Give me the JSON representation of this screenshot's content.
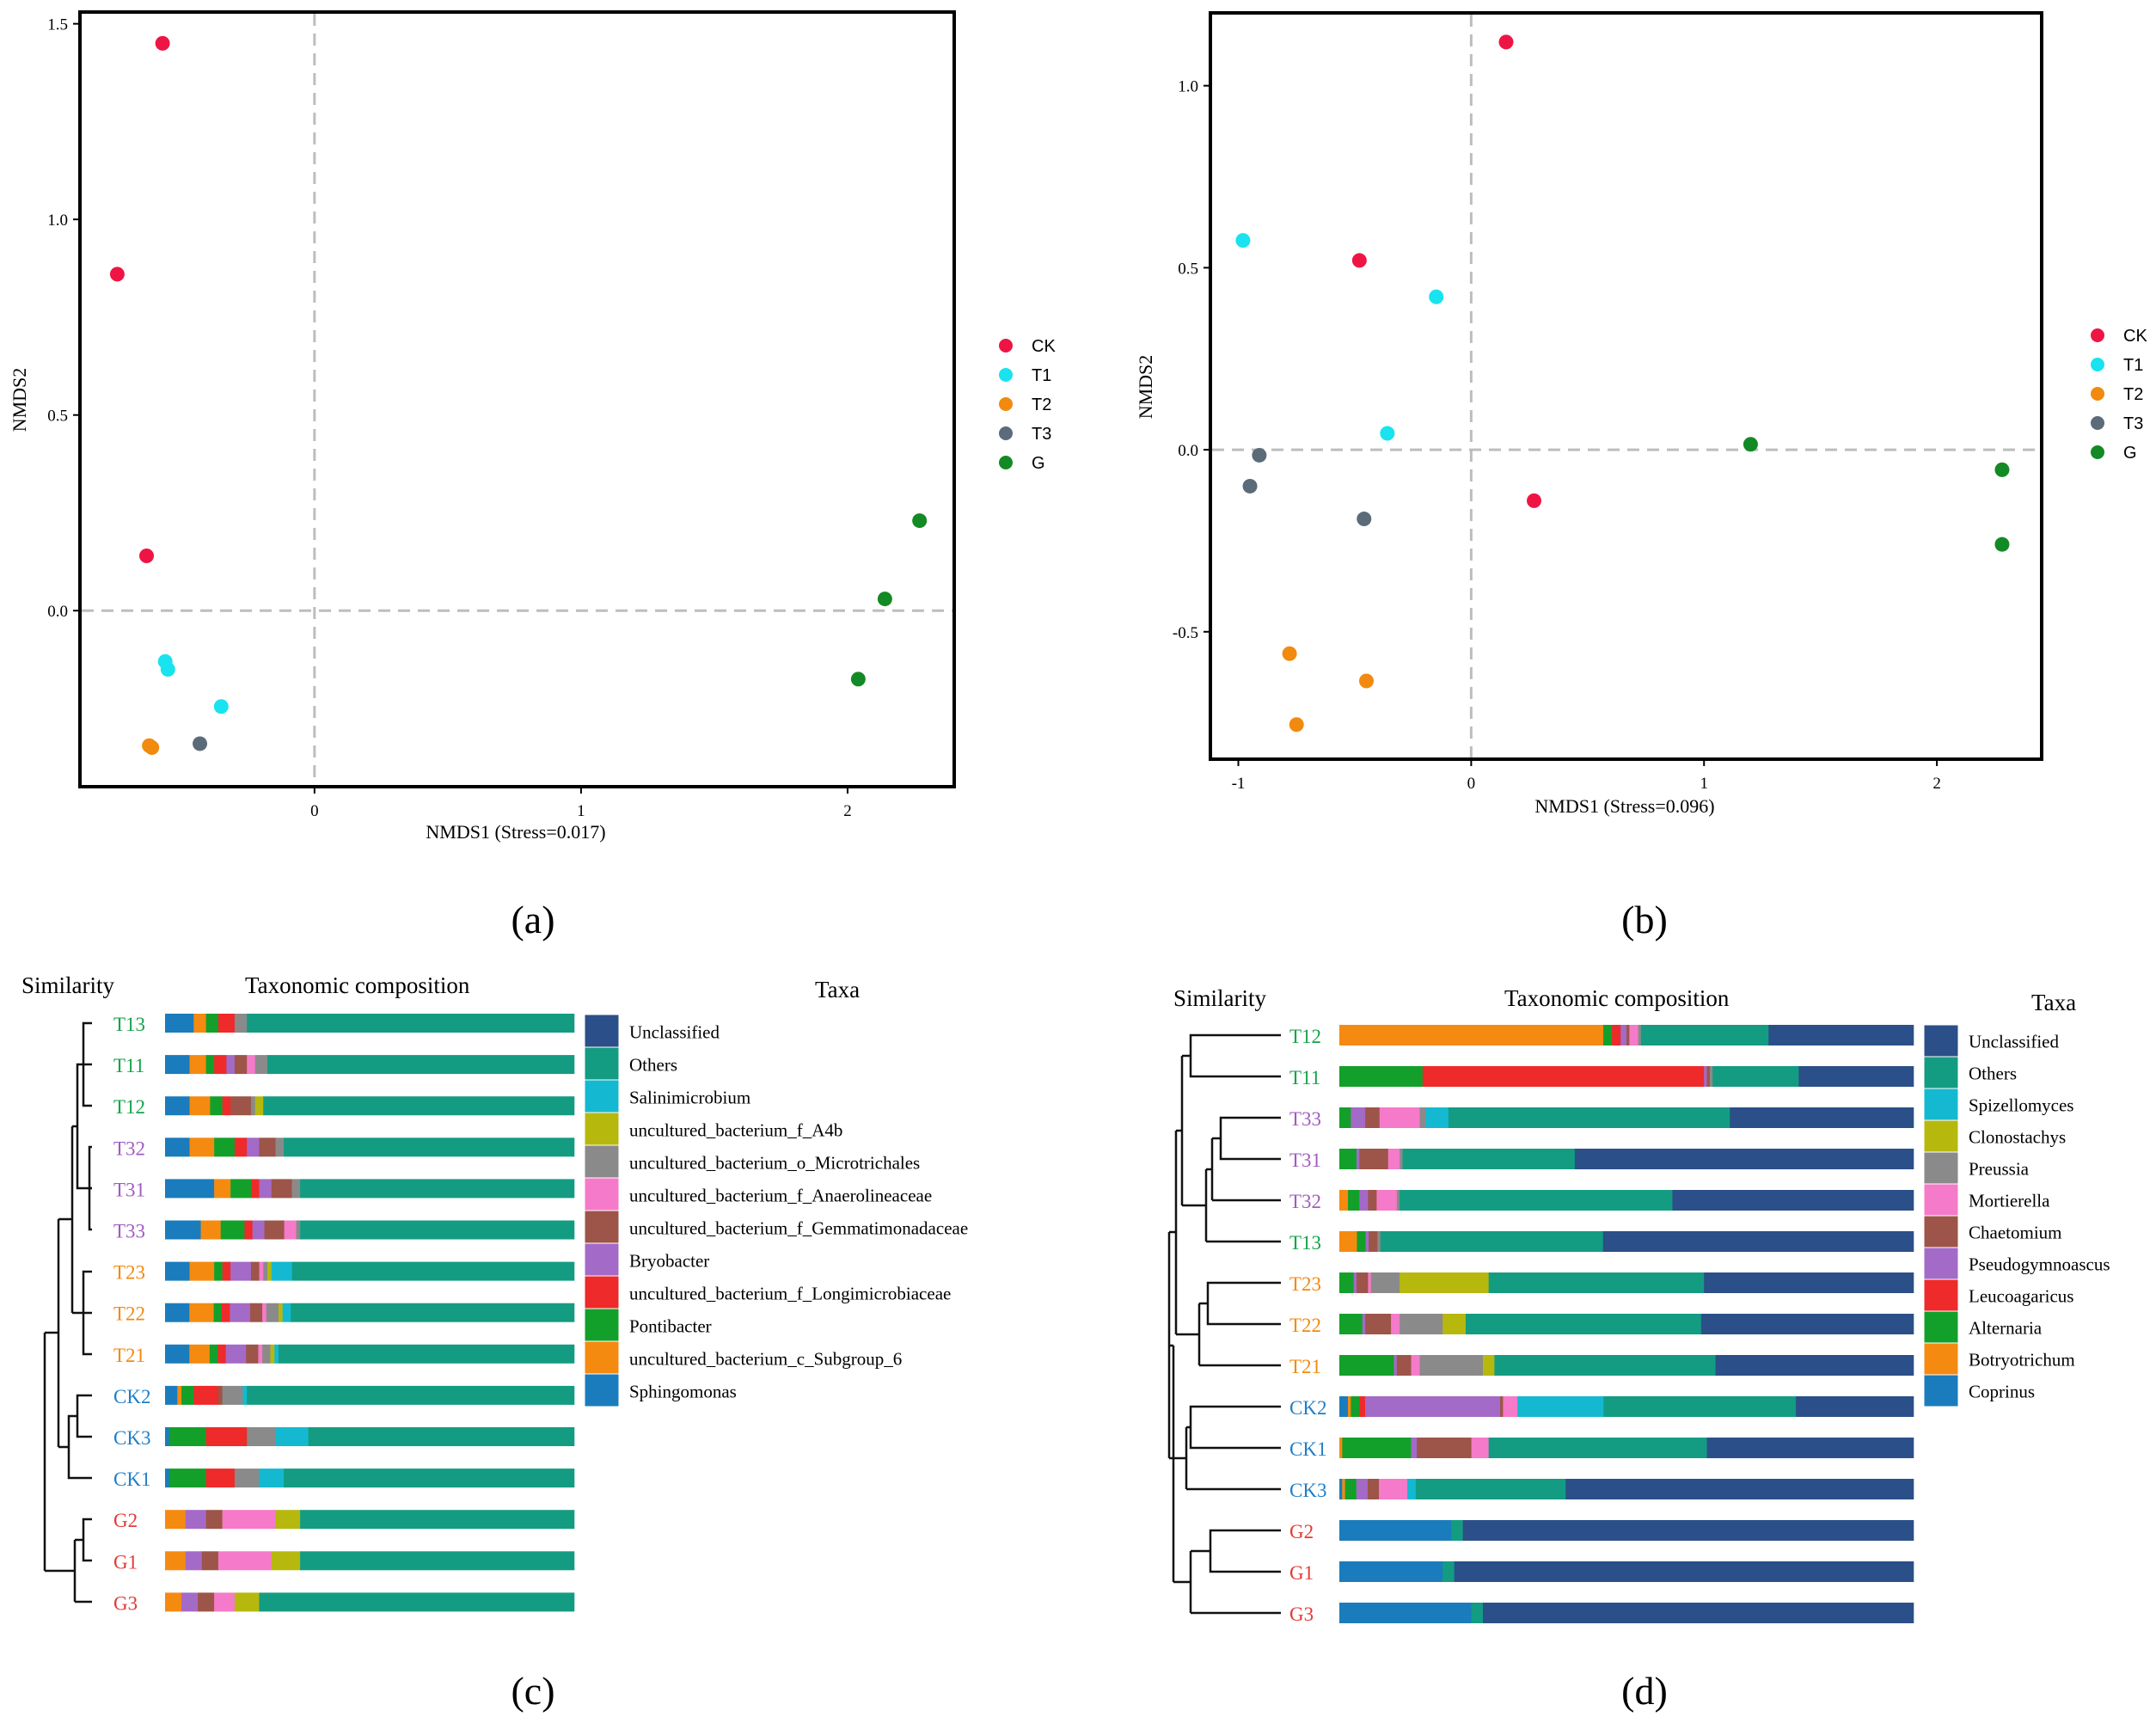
{
  "colors": {
    "CK": "#ee1545",
    "T1": "#18e3ee",
    "T2": "#f18a0f",
    "T3": "#5c6b79",
    "G": "#138a25",
    "lab_green": "#16a34a",
    "lab_purple": "#a05cc0",
    "lab_orange": "#f28a0f",
    "lab_blue": "#1f7ec8",
    "lab_red": "#e53935"
  },
  "chart_data": [
    {
      "id": "a",
      "type": "scatter",
      "panel_label": "(a)",
      "xlabel": "NMDS1 (Stress=0.017)",
      "ylabel": "NMDS2",
      "xlim": [
        -0.88,
        2.4
      ],
      "ylim": [
        -0.45,
        1.53
      ],
      "xticks": [
        "0",
        "1",
        "2"
      ],
      "xtick_values": [
        0,
        1,
        2
      ],
      "yticks": [
        "0.0",
        "0.5",
        "1.0",
        "1.5"
      ],
      "ytick_values": [
        0,
        0.5,
        1.0,
        1.5
      ],
      "legend": [
        "CK",
        "T1",
        "T2",
        "T3",
        "G"
      ],
      "series": [
        {
          "name": "CK",
          "points": [
            [
              -0.57,
              1.45
            ],
            [
              -0.74,
              0.86
            ],
            [
              -0.63,
              0.14
            ]
          ]
        },
        {
          "name": "T1",
          "points": [
            [
              -0.56,
              -0.13
            ],
            [
              -0.55,
              -0.15
            ],
            [
              -0.35,
              -0.245
            ]
          ]
        },
        {
          "name": "T2",
          "points": [
            [
              -0.62,
              -0.345
            ],
            [
              -0.61,
              -0.35
            ]
          ]
        },
        {
          "name": "T3",
          "points": [
            [
              -0.43,
              -0.34
            ]
          ]
        },
        {
          "name": "G",
          "points": [
            [
              2.27,
              0.23
            ],
            [
              2.14,
              0.03
            ],
            [
              2.04,
              -0.175
            ]
          ]
        }
      ]
    },
    {
      "id": "b",
      "type": "scatter",
      "panel_label": "(b)",
      "xlabel": "NMDS1 (Stress=0.096)",
      "ylabel": "NMDS2",
      "xlim": [
        -1.12,
        2.45
      ],
      "ylim": [
        -0.85,
        1.2
      ],
      "xticks": [
        "-1",
        "0",
        "1",
        "2"
      ],
      "xtick_values": [
        -1,
        0,
        1,
        2
      ],
      "yticks": [
        "-0.5",
        "0.0",
        "0.5",
        "1.0"
      ],
      "ytick_values": [
        -0.5,
        0,
        0.5,
        1.0
      ],
      "legend": [
        "CK",
        "T1",
        "T2",
        "T3",
        "G"
      ],
      "series": [
        {
          "name": "CK",
          "points": [
            [
              0.15,
              1.12
            ],
            [
              -0.48,
              0.52
            ],
            [
              0.27,
              -0.14
            ]
          ]
        },
        {
          "name": "T1",
          "points": [
            [
              -0.98,
              0.575
            ],
            [
              -0.15,
              0.42
            ],
            [
              -0.36,
              0.045
            ]
          ]
        },
        {
          "name": "T2",
          "points": [
            [
              -0.78,
              -0.56
            ],
            [
              -0.45,
              -0.635
            ],
            [
              -0.75,
              -0.755
            ]
          ]
        },
        {
          "name": "T3",
          "points": [
            [
              -0.91,
              -0.015
            ],
            [
              -0.95,
              -0.1
            ],
            [
              -0.46,
              -0.19
            ]
          ]
        },
        {
          "name": "G",
          "points": [
            [
              1.2,
              0.015
            ],
            [
              2.28,
              -0.055
            ],
            [
              2.28,
              -0.26
            ]
          ]
        }
      ]
    },
    {
      "id": "c",
      "type": "stacked_bar",
      "panel_label": "(c)",
      "title_left": "Similarity",
      "title_mid": "Taxonomic composition",
      "title_legend": "Taxa",
      "taxa": [
        "Unclassified",
        "Others",
        "Salinimicrobium",
        "uncultured_bacterium_f_A4b",
        "uncultured_bacterium_o_Microtrichales",
        "uncultured_bacterium_f_Anaerolineaceae",
        "uncultured_bacterium_f_Gemmatimonadaceae",
        "Bryobacter",
        "uncultured_bacterium_f_Longimicrobiaceae",
        "Pontibacter",
        "uncultured_bacterium_c_Subgroup_6",
        "Sphingomonas"
      ],
      "taxa_colors": [
        "#2b4f88",
        "#139c82",
        "#14b9d1",
        "#b7b80d",
        "#8a8a8a",
        "#f57ac9",
        "#9c5548",
        "#a46ac7",
        "#ee2a2a",
        "#13a02a",
        "#f58a11",
        "#1a7cbc"
      ],
      "samples": [
        {
          "name": "T13",
          "group": "T1",
          "values": [
            0,
            80.0,
            0,
            0,
            3,
            0,
            0,
            0,
            4,
            3,
            3,
            7
          ]
        },
        {
          "name": "T11",
          "group": "T1",
          "values": [
            0,
            75.0,
            0,
            0,
            3,
            2,
            3,
            2,
            3,
            2,
            4,
            6
          ]
        },
        {
          "name": "T12",
          "group": "T1",
          "values": [
            0,
            76.0,
            0,
            2,
            1,
            0,
            5,
            0,
            2,
            3,
            5,
            6
          ]
        },
        {
          "name": "T32",
          "group": "T3",
          "values": [
            0,
            71.0,
            0,
            0,
            2,
            0,
            4,
            3,
            3,
            5,
            6,
            6
          ]
        },
        {
          "name": "T31",
          "group": "T3",
          "values": [
            0,
            67.0,
            0,
            0,
            2,
            0,
            5,
            3,
            2,
            5,
            4,
            12
          ]
        },
        {
          "name": "T33",
          "group": "T3",
          "values": [
            0,
            69.0,
            0,
            0,
            1,
            3,
            5,
            3,
            2,
            6,
            5,
            9
          ]
        },
        {
          "name": "T23",
          "group": "T2",
          "values": [
            0,
            69.0,
            5,
            1,
            1,
            1,
            2,
            5,
            2,
            2,
            6,
            6
          ]
        },
        {
          "name": "T22",
          "group": "T2",
          "values": [
            0,
            70.0,
            2,
            1,
            3,
            1,
            3,
            5,
            2,
            2,
            6,
            6
          ]
        },
        {
          "name": "T21",
          "group": "T2",
          "values": [
            0,
            73.0,
            1,
            1,
            2,
            1,
            3,
            5,
            2,
            2,
            5,
            6
          ]
        },
        {
          "name": "CK2",
          "group": "CK",
          "values": [
            0,
            80.0,
            1,
            0,
            5,
            0,
            1,
            0,
            6,
            3,
            1,
            3
          ]
        },
        {
          "name": "CK3",
          "group": "CK",
          "values": [
            0,
            65.0,
            8,
            0,
            7,
            0,
            0,
            0,
            10,
            9,
            0,
            1
          ]
        },
        {
          "name": "CK1",
          "group": "CK",
          "values": [
            0,
            71.0,
            6,
            0,
            6,
            0,
            0,
            0,
            7,
            9,
            0,
            1
          ]
        },
        {
          "name": "G2",
          "group": "G",
          "values": [
            0,
            67.0,
            0,
            6,
            0,
            13,
            4,
            5,
            0,
            0,
            5,
            0
          ]
        },
        {
          "name": "G1",
          "group": "G",
          "values": [
            0,
            67.0,
            0,
            7,
            0,
            13,
            4,
            4,
            0,
            0,
            5,
            0
          ]
        },
        {
          "name": "G3",
          "group": "G",
          "values": [
            0,
            77.0,
            0,
            6,
            0,
            5,
            4,
            4,
            0,
            0,
            4,
            0
          ]
        }
      ]
    },
    {
      "id": "d",
      "type": "stacked_bar",
      "panel_label": "(d)",
      "title_left": "Similarity",
      "title_mid": "Taxonomic composition",
      "title_legend": "Taxa",
      "taxa": [
        "Unclassified",
        "Others",
        "Spizellomyces",
        "Clonostachys",
        "Preussia",
        "Mortierella",
        "Chaetomium",
        "Pseudogymnoascus",
        "Leucoagaricus",
        "Alternaria",
        "Botryotrichum",
        "Coprinus"
      ],
      "taxa_colors": [
        "#2b4f88",
        "#139c82",
        "#14b9d1",
        "#b7b80d",
        "#8a8a8a",
        "#f57ac9",
        "#9c5548",
        "#a46ac7",
        "#ee2a2a",
        "#13a02a",
        "#f58a11",
        "#1a7cbc"
      ],
      "samples": [
        {
          "name": "T12",
          "group": "T1",
          "values": [
            25,
            22,
            0,
            0,
            0.5,
            1.5,
            0.5,
            1,
            1.5,
            1.5,
            45.5,
            0
          ]
        },
        {
          "name": "T11",
          "group": "T1",
          "values": [
            20,
            15,
            0,
            0,
            0.5,
            0,
            0.5,
            0.5,
            49,
            14.5,
            0,
            0
          ]
        },
        {
          "name": "T33",
          "group": "T3",
          "values": [
            32,
            49,
            4,
            0,
            1,
            7,
            2.5,
            2.5,
            0,
            2,
            0,
            0
          ]
        },
        {
          "name": "T31",
          "group": "T3",
          "values": [
            59,
            30,
            0,
            0,
            0.5,
            2,
            5,
            0.5,
            0,
            3,
            0,
            0
          ]
        },
        {
          "name": "T32",
          "group": "T3",
          "values": [
            42,
            47.5,
            0,
            0,
            0.5,
            3.5,
            1.5,
            1.5,
            0,
            2,
            1.5,
            0
          ]
        },
        {
          "name": "T13",
          "group": "T1",
          "values": [
            53,
            38,
            0,
            0,
            0.5,
            0,
            1.5,
            0.5,
            0,
            1.5,
            3,
            0
          ]
        },
        {
          "name": "T23",
          "group": "T2",
          "values": [
            36.5,
            37.5,
            0,
            15.5,
            5,
            0.5,
            2,
            0.5,
            0,
            2.5,
            0,
            0
          ]
        },
        {
          "name": "T22",
          "group": "T2",
          "values": [
            37,
            41,
            0,
            4,
            7.5,
            1.5,
            4.5,
            0.5,
            0,
            4,
            0,
            0
          ]
        },
        {
          "name": "T21",
          "group": "T2",
          "values": [
            34.5,
            38.5,
            0,
            2,
            11,
            1.5,
            2.5,
            0.5,
            0,
            9.5,
            0,
            0
          ]
        },
        {
          "name": "CK2",
          "group": "CK",
          "values": [
            20.5,
            33.5,
            15,
            0,
            0,
            2.5,
            0.5,
            23.5,
            1,
            1.5,
            0.5,
            1.5
          ]
        },
        {
          "name": "CK1",
          "group": "CK",
          "values": [
            36,
            38,
            0,
            0,
            0,
            3,
            9.5,
            1,
            0,
            12,
            0.5,
            0
          ]
        },
        {
          "name": "CK3",
          "group": "CK",
          "values": [
            61.5,
            26.5,
            1.5,
            0,
            0,
            5,
            2,
            2,
            0,
            2,
            0.5,
            0.5
          ]
        },
        {
          "name": "G2",
          "group": "G",
          "values": [
            78.5,
            2,
            0,
            0,
            0,
            0,
            0,
            0,
            0,
            0,
            0,
            19.5
          ]
        },
        {
          "name": "G1",
          "group": "G",
          "values": [
            80,
            2,
            0,
            0,
            0,
            0,
            0,
            0,
            0,
            0,
            0,
            18
          ]
        },
        {
          "name": "G3",
          "group": "G",
          "values": [
            75,
            2,
            0,
            0,
            0,
            0,
            0,
            0,
            0,
            0,
            0,
            23
          ]
        }
      ]
    }
  ]
}
